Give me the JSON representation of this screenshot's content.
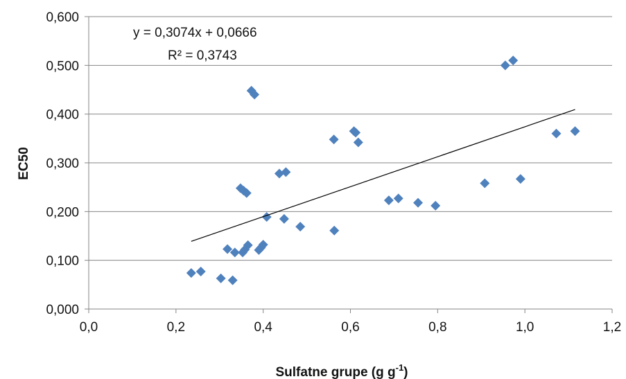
{
  "chart_data": {
    "type": "scatter",
    "title": "",
    "xlabel": "Sulfatne grupe (g g",
    "xlabel_sup": "-1",
    "xlabel_close": ")",
    "ylabel": "EC50",
    "xlim": [
      0.0,
      1.2
    ],
    "ylim": [
      0.0,
      0.6
    ],
    "xticks": [
      "0,0",
      "0,2",
      "0,4",
      "0,6",
      "0,8",
      "1,0",
      "1,2"
    ],
    "xtick_values": [
      0.0,
      0.2,
      0.4,
      0.6,
      0.8,
      1.0,
      1.2
    ],
    "yticks": [
      "0,000",
      "0,100",
      "0,200",
      "0,300",
      "0,400",
      "0,500",
      "0,600"
    ],
    "ytick_values": [
      0.0,
      0.1,
      0.2,
      0.3,
      0.4,
      0.5,
      0.6
    ],
    "grid": "horizontal",
    "marker_color": "#4F81BD",
    "series": [
      {
        "points": [
          [
            0.235,
            0.074
          ],
          [
            0.257,
            0.077
          ],
          [
            0.303,
            0.063
          ],
          [
            0.33,
            0.059
          ],
          [
            0.318,
            0.123
          ],
          [
            0.335,
            0.116
          ],
          [
            0.353,
            0.116
          ],
          [
            0.358,
            0.122
          ],
          [
            0.365,
            0.131
          ],
          [
            0.39,
            0.121
          ],
          [
            0.395,
            0.126
          ],
          [
            0.4,
            0.132
          ],
          [
            0.348,
            0.248
          ],
          [
            0.355,
            0.243
          ],
          [
            0.362,
            0.238
          ],
          [
            0.373,
            0.448
          ],
          [
            0.38,
            0.44
          ],
          [
            0.408,
            0.189
          ],
          [
            0.448,
            0.185
          ],
          [
            0.485,
            0.169
          ],
          [
            0.437,
            0.278
          ],
          [
            0.452,
            0.281
          ],
          [
            0.562,
            0.348
          ],
          [
            0.563,
            0.161
          ],
          [
            0.608,
            0.365
          ],
          [
            0.612,
            0.362
          ],
          [
            0.618,
            0.342
          ],
          [
            0.688,
            0.223
          ],
          [
            0.71,
            0.227
          ],
          [
            0.755,
            0.218
          ],
          [
            0.795,
            0.212
          ],
          [
            0.908,
            0.258
          ],
          [
            0.955,
            0.5
          ],
          [
            0.973,
            0.51
          ],
          [
            0.99,
            0.267
          ],
          [
            1.072,
            0.36
          ],
          [
            1.115,
            0.365
          ]
        ]
      }
    ],
    "trendline": {
      "x_range": [
        0.235,
        1.115
      ],
      "slope": 0.3074,
      "intercept": 0.0666,
      "equation": "y = 0,3074x + 0,0666",
      "r2": "R² = 0,3743",
      "color": "#000000"
    }
  }
}
